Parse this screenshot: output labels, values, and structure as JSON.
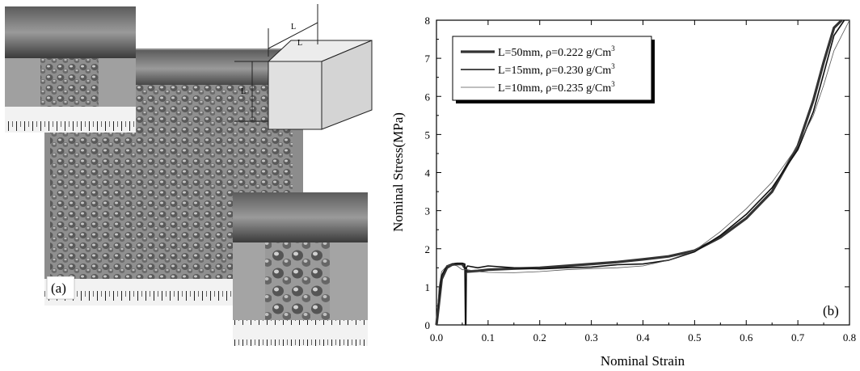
{
  "panel_a": {
    "label": "(a)",
    "cube_dimension_label": "L",
    "description_colors": {
      "foam": "#8a8a8a",
      "platen": "#6e6e6e",
      "ruler": "#f2f2f2"
    }
  },
  "chart_data": {
    "type": "line",
    "xlabel": "Nominal Strain",
    "ylabel": "Nominal Stress(MPa)",
    "panel_label": "(b)",
    "xlim": [
      0,
      0.8
    ],
    "ylim": [
      0,
      8
    ],
    "xticks": [
      "0.0",
      "0.1",
      "0.2",
      "0.3",
      "0.4",
      "0.5",
      "0.6",
      "0.7",
      "0.8"
    ],
    "yticks": [
      "0",
      "1",
      "2",
      "3",
      "4",
      "5",
      "6",
      "7",
      "8"
    ],
    "legend_position": "top-left",
    "series": [
      {
        "name": "L=50mm, ρ=0.222 g/Cm",
        "name_superscript": "3",
        "stroke_width": 3.2,
        "color": "#333333",
        "x": [
          0.0,
          0.005,
          0.01,
          0.02,
          0.03,
          0.04,
          0.05,
          0.06,
          0.08,
          0.1,
          0.15,
          0.2,
          0.25,
          0.3,
          0.35,
          0.4,
          0.45,
          0.5,
          0.55,
          0.6,
          0.65,
          0.7,
          0.73,
          0.75,
          0.77,
          0.785
        ],
        "y": [
          0.0,
          0.6,
          1.2,
          1.5,
          1.58,
          1.6,
          1.6,
          1.4,
          1.42,
          1.45,
          1.48,
          1.5,
          1.55,
          1.6,
          1.65,
          1.72,
          1.8,
          1.95,
          2.3,
          2.8,
          3.5,
          4.7,
          5.9,
          6.9,
          7.8,
          8.0
        ]
      },
      {
        "name": "L=15mm, ρ=0.230 g/Cm",
        "name_superscript": "3",
        "stroke_width": 1.6,
        "color": "#111111",
        "x": [
          0.0,
          0.005,
          0.01,
          0.02,
          0.03,
          0.04,
          0.05,
          0.055,
          0.056,
          0.057,
          0.058,
          0.06,
          0.08,
          0.1,
          0.15,
          0.2,
          0.25,
          0.3,
          0.35,
          0.4,
          0.45,
          0.5,
          0.55,
          0.6,
          0.65,
          0.7,
          0.73,
          0.75,
          0.77,
          0.79
        ],
        "y": [
          0.0,
          0.8,
          1.3,
          1.55,
          1.6,
          1.62,
          1.62,
          1.6,
          0.0,
          0.0,
          1.5,
          1.55,
          1.5,
          1.55,
          1.5,
          1.47,
          1.5,
          1.52,
          1.58,
          1.6,
          1.7,
          1.92,
          2.35,
          2.9,
          3.6,
          4.6,
          5.6,
          6.6,
          7.6,
          8.0
        ]
      },
      {
        "name": "L=10mm, ρ=0.235 g/Cm",
        "name_superscript": "3",
        "stroke_width": 0.8,
        "color": "#555555",
        "x": [
          0.0,
          0.005,
          0.01,
          0.02,
          0.03,
          0.04,
          0.05,
          0.06,
          0.08,
          0.1,
          0.15,
          0.2,
          0.25,
          0.3,
          0.35,
          0.4,
          0.45,
          0.5,
          0.55,
          0.6,
          0.65,
          0.7,
          0.73,
          0.75,
          0.77,
          0.8
        ],
        "y": [
          0.0,
          1.0,
          1.4,
          1.55,
          1.58,
          1.55,
          1.45,
          1.45,
          1.4,
          1.38,
          1.37,
          1.4,
          1.45,
          1.48,
          1.5,
          1.55,
          1.7,
          1.95,
          2.45,
          3.05,
          3.75,
          4.7,
          5.5,
          6.3,
          7.2,
          8.0
        ]
      }
    ]
  }
}
